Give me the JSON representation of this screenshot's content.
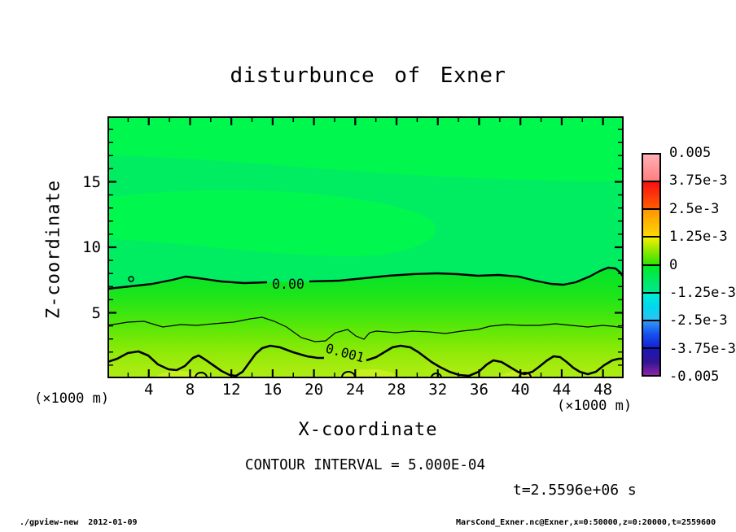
{
  "title": {
    "text": "disturbunce of Exner"
  },
  "plot": {
    "x_axis": {
      "label": "X-coordinate",
      "unit_left": "(×1000 m)",
      "unit_right": "(×1000 m)",
      "ticks": [
        4,
        8,
        12,
        16,
        20,
        24,
        28,
        32,
        36,
        40,
        44,
        48
      ],
      "min": 0,
      "max": 50
    },
    "y_axis": {
      "label": "Z-coordinate",
      "ticks": [
        5,
        10,
        15
      ],
      "min": 0,
      "max": 20
    },
    "contour_label_zero": "0.00",
    "contour_label_one": "0.001"
  },
  "colorbar": {
    "labels": [
      "0.005",
      "3.75e-3",
      "2.5e-3",
      "1.25e-3",
      "0",
      "-1.25e-3",
      "-2.5e-3",
      "-3.75e-3",
      "-0.005"
    ],
    "blocks": [
      {
        "colors": [
          "#FFB0B4",
          "#FF7F80"
        ]
      },
      {
        "colors": [
          "#FA1111",
          "#FF5C00"
        ]
      },
      {
        "colors": [
          "#FF9500",
          "#FFD800"
        ]
      },
      {
        "colors": [
          "#F4F100",
          "#8FE800",
          "#2FE400"
        ]
      },
      {
        "colors": [
          "#00EA25",
          "#00E960",
          "#00E78C"
        ]
      },
      {
        "colors": [
          "#00EDD4",
          "#00D8EE",
          "#30C2F4"
        ]
      },
      {
        "colors": [
          "#2F97F4",
          "#1550EE",
          "#1420D6"
        ]
      },
      {
        "colors": [
          "#1B16BC",
          "#321594",
          "#8F22A8"
        ]
      }
    ]
  },
  "annotations": {
    "contour_interval": "CONTOUR INTERVAL = 5.000E-04",
    "time": "t=2.5596e+06 s"
  },
  "footer": {
    "left": "./gpview-new  2012-01-09",
    "right": "MarsCond_Exner.nc@Exner,x=0:50000,z=0:20000,t=2559600"
  },
  "colors": {
    "field_base": "#00ED62",
    "field_light_patch": "#00F74E",
    "bottom_patch": "#C6F01E",
    "contour_line": "#000000"
  },
  "chart_data": {
    "type": "contour",
    "title": "disturbunce of Exner",
    "xlabel": "X-coordinate",
    "ylabel": "Z-coordinate",
    "x_units": "×1000 m",
    "y_units": "×1000 m",
    "xlim": [
      0,
      50
    ],
    "ylim": [
      0,
      20
    ],
    "x_ticks": [
      4,
      8,
      12,
      16,
      20,
      24,
      28,
      32,
      36,
      40,
      44,
      48
    ],
    "y_ticks": [
      5,
      10,
      15
    ],
    "contour_interval": 0.0005,
    "colorbar_levels": [
      0.005,
      0.00375,
      0.0025,
      0.00125,
      0,
      -0.00125,
      -0.0025,
      -0.00375,
      -0.005
    ],
    "labeled_contours": [
      {
        "level": 0.0,
        "label": "0.00",
        "style": "thick",
        "approx_z_thousand_m": 7
      },
      {
        "level": 0.0005,
        "label": "",
        "style": "thin",
        "approx_z_thousand_m": 4
      },
      {
        "level": 0.001,
        "label": "0.001",
        "style": "thick",
        "approx_z_thousand_m": 1.5
      }
    ],
    "field_description": "Exner-function disturbance: slightly negative (spring green) above z≈7, crossing 0 along a wavy thick contour, increasing through 5e-4 (thin wavy contour near z≈4) to >1e-3 (yellow-green) near the surface",
    "time_seconds": 2559600,
    "time_label": "t=2.5596e+06 s"
  }
}
